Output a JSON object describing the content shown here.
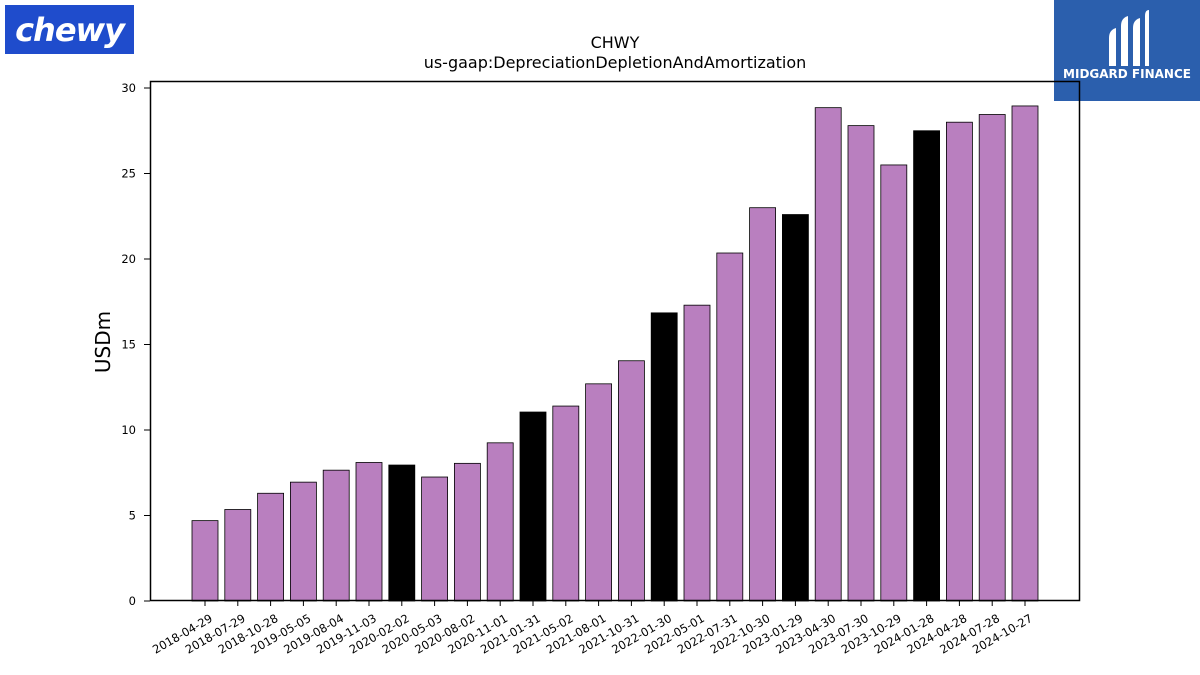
{
  "branding": {
    "left_logo_text": "chewy",
    "right_logo_text": "MIDGARD FINANCE"
  },
  "colors": {
    "bar_default": "#b97fbf",
    "bar_highlight": "#000000",
    "logo_left_bg": "#1f4ccc",
    "logo_right_bg": "#2b5fad"
  },
  "chart_data": {
    "type": "bar",
    "title": "CHWY",
    "subtitle": "us-gaap:DepreciationDepletionAndAmortization",
    "xlabel": "",
    "ylabel": "USDm",
    "ylim": [
      0,
      30
    ],
    "yticks": [
      0,
      5,
      10,
      15,
      20,
      25,
      30
    ],
    "grid": false,
    "categories": [
      "2018-04-29",
      "2018-07-29",
      "2018-10-28",
      "2019-05-05",
      "2019-08-04",
      "2019-11-03",
      "2020-02-02",
      "2020-05-03",
      "2020-08-02",
      "2020-11-01",
      "2021-01-31",
      "2021-05-02",
      "2021-08-01",
      "2021-10-31",
      "2022-01-30",
      "2022-05-01",
      "2022-07-31",
      "2022-10-30",
      "2023-01-29",
      "2023-04-30",
      "2023-07-30",
      "2023-10-29",
      "2024-01-28",
      "2024-04-28",
      "2024-07-28",
      "2024-10-27"
    ],
    "values": [
      4.7,
      5.35,
      6.3,
      6.95,
      7.65,
      8.1,
      7.95,
      7.25,
      8.05,
      9.25,
      11.05,
      11.4,
      12.7,
      14.05,
      16.85,
      17.3,
      20.35,
      23.0,
      22.6,
      28.85,
      27.8,
      25.5,
      27.5,
      28.0,
      28.45,
      28.95
    ],
    "highlight": [
      false,
      false,
      false,
      false,
      false,
      false,
      true,
      false,
      false,
      false,
      true,
      false,
      false,
      false,
      true,
      false,
      false,
      false,
      true,
      false,
      false,
      false,
      true,
      false,
      false,
      false
    ]
  }
}
